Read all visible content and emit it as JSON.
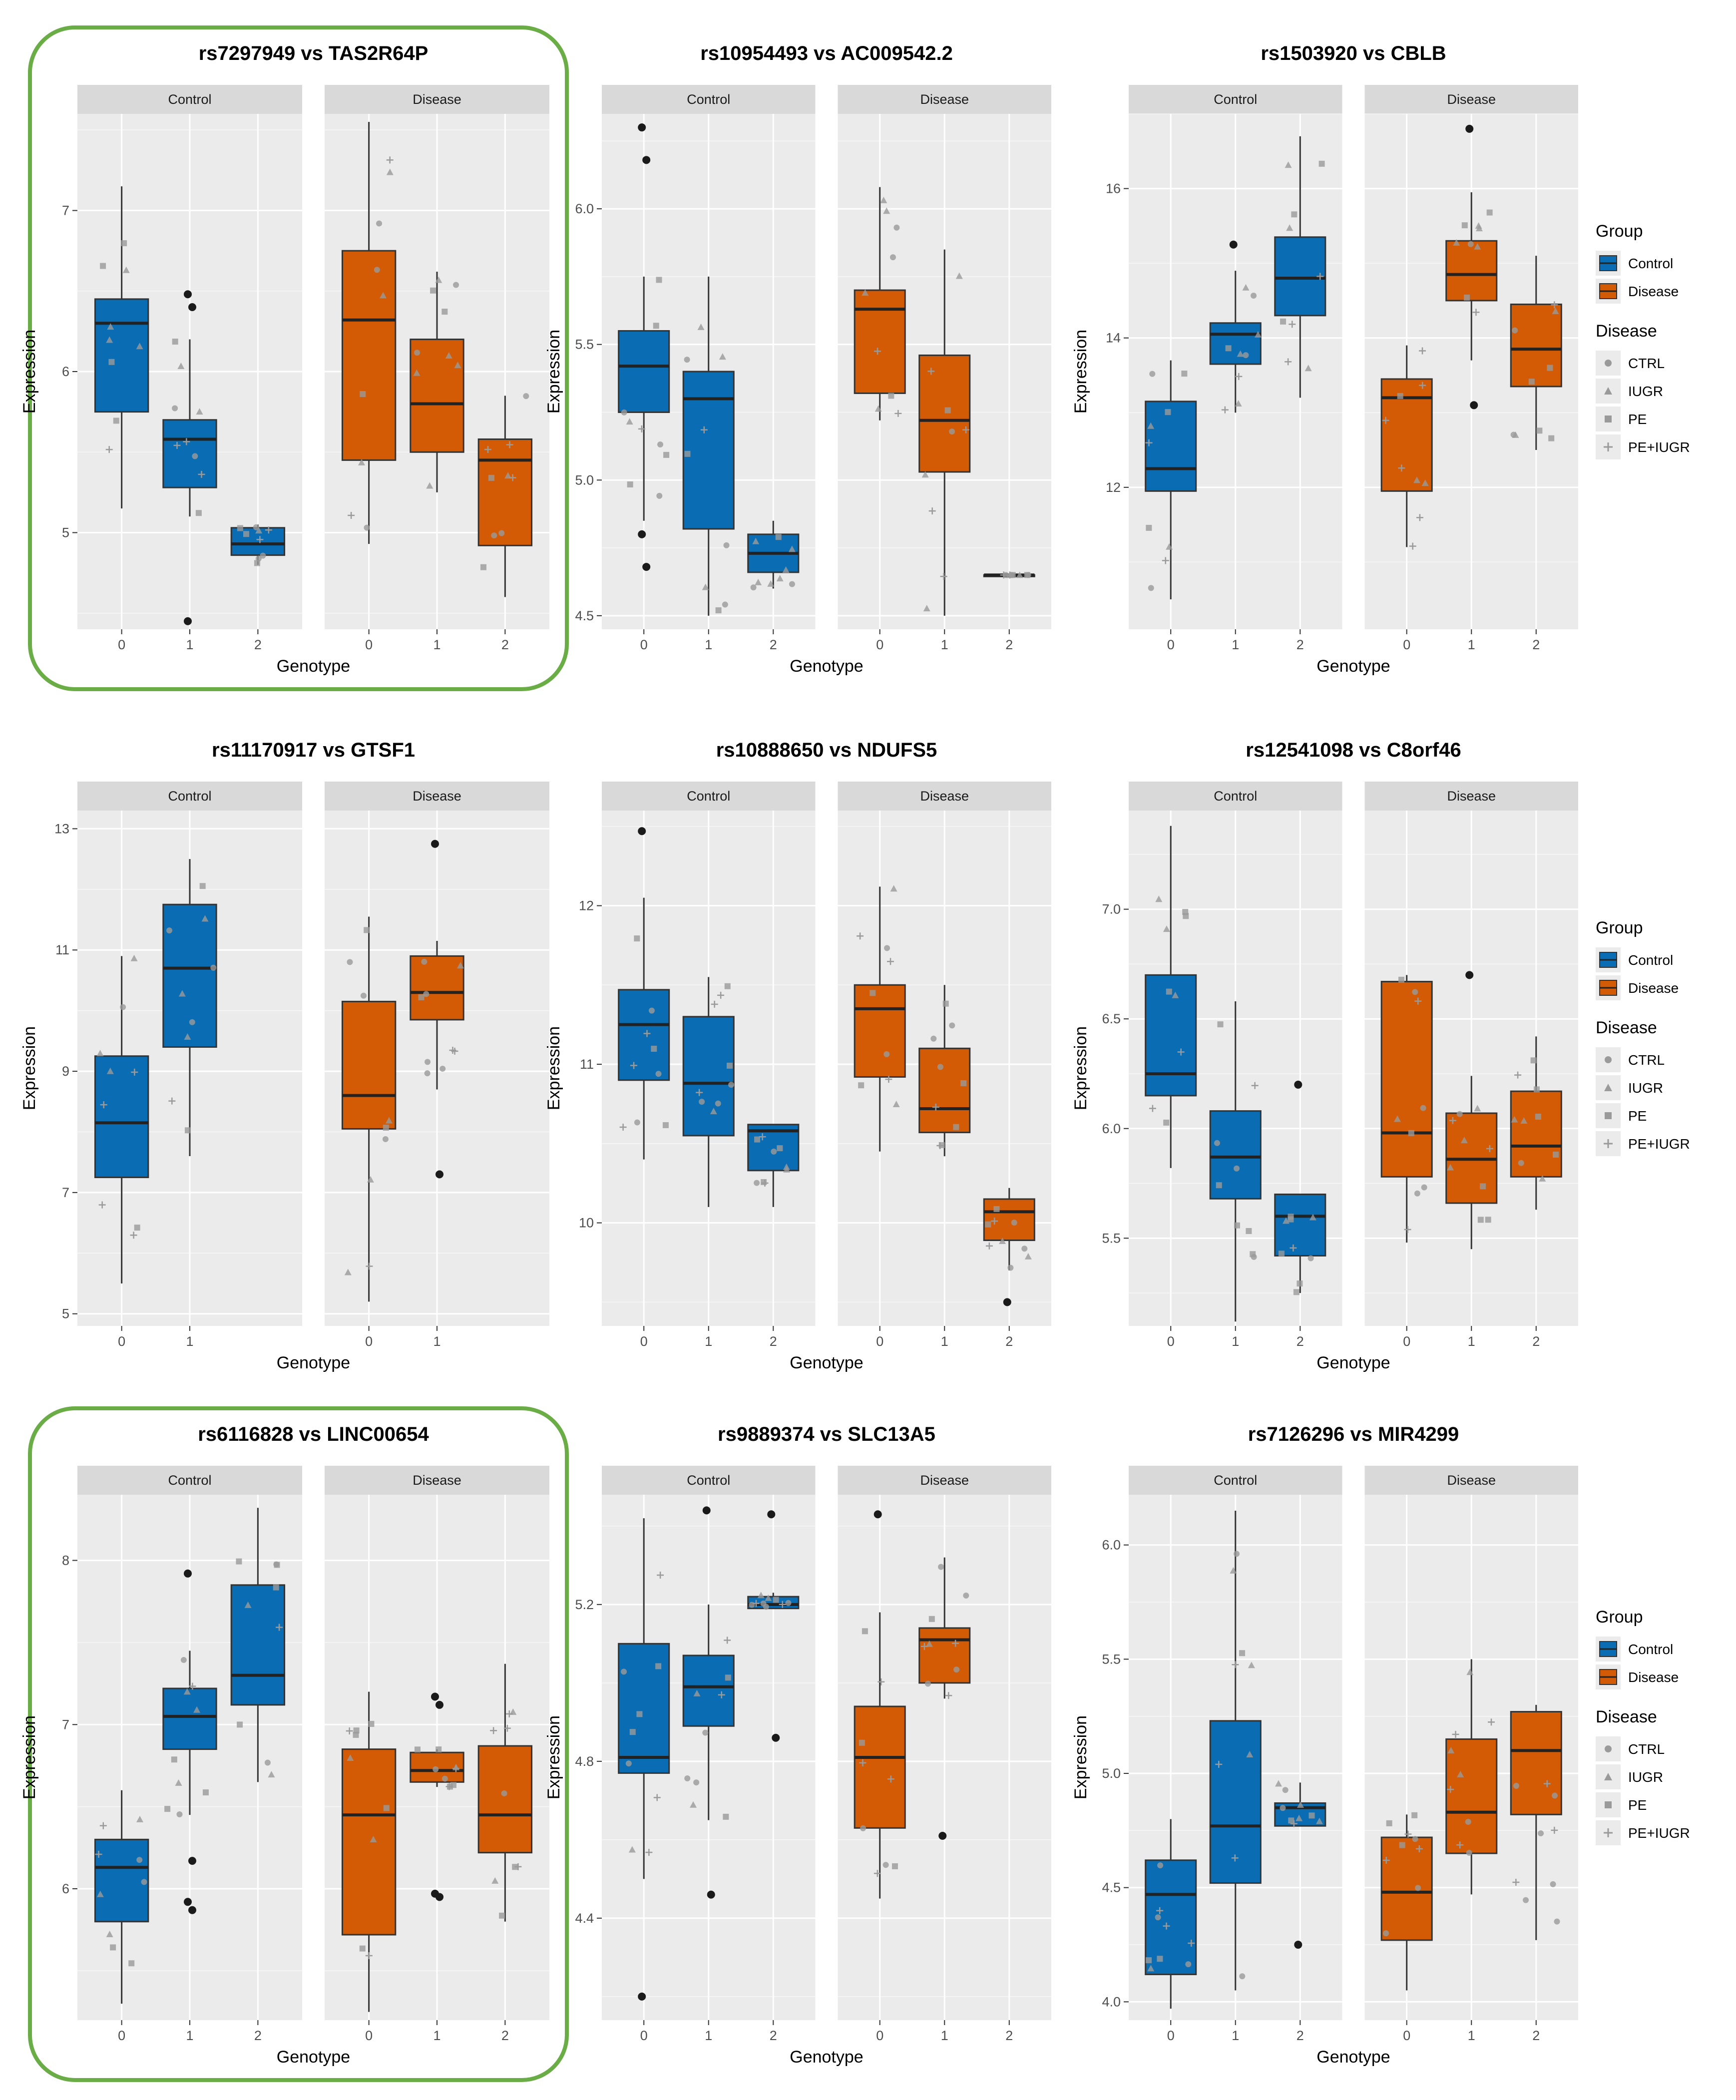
{
  "colors": {
    "control": "#0a6db3",
    "disease": "#d35b06",
    "panel_bg": "#ebebeb",
    "strip_bg": "#d9d9d9",
    "grid": "#ffffff",
    "highlight": "#6aac45",
    "point": "#9a9a9a",
    "outlier": "#1a1a1a"
  },
  "chart_data": [
    {
      "type": "boxplot",
      "title": "rs7297949 vs TAS2R64P",
      "xlabel": "Genotype",
      "ylabel": "Expression",
      "ylim": [
        4.4,
        7.6
      ],
      "yticks": [
        5,
        6,
        7
      ],
      "highlighted": true,
      "legend": false,
      "facets": [
        {
          "label": "Control",
          "group": "Control",
          "genotypes": [
            "0",
            "1",
            "2"
          ],
          "boxes": [
            {
              "min": 5.15,
              "q1": 5.75,
              "median": 6.3,
              "q3": 6.45,
              "max": 7.15,
              "outliers": []
            },
            {
              "min": 5.1,
              "q1": 5.28,
              "median": 5.58,
              "q3": 5.7,
              "max": 6.2,
              "outliers": [
                6.48,
                6.4,
                4.45
              ]
            },
            {
              "min": 4.8,
              "q1": 4.86,
              "median": 4.93,
              "q3": 5.03,
              "max": 5.05,
              "outliers": []
            }
          ]
        },
        {
          "label": "Disease",
          "group": "Disease",
          "genotypes": [
            "0",
            "1",
            "2"
          ],
          "boxes": [
            {
              "min": 4.93,
              "q1": 5.45,
              "median": 6.32,
              "q3": 6.75,
              "max": 7.55,
              "outliers": []
            },
            {
              "min": 5.25,
              "q1": 5.5,
              "median": 5.8,
              "q3": 6.2,
              "max": 6.62,
              "outliers": []
            },
            {
              "min": 4.6,
              "q1": 4.92,
              "median": 5.45,
              "q3": 5.58,
              "max": 5.85,
              "outliers": []
            }
          ]
        }
      ]
    },
    {
      "type": "boxplot",
      "title": "rs10954493 vs AC009542.2",
      "xlabel": "Genotype",
      "ylabel": "Expression",
      "ylim": [
        4.45,
        6.35
      ],
      "yticks": [
        4.5,
        5.0,
        5.5,
        6.0
      ],
      "highlighted": false,
      "legend": false,
      "facets": [
        {
          "label": "Control",
          "group": "Control",
          "genotypes": [
            "0",
            "1",
            "2"
          ],
          "boxes": [
            {
              "min": 4.85,
              "q1": 5.25,
              "median": 5.42,
              "q3": 5.55,
              "max": 5.75,
              "outliers": [
                6.3,
                6.18,
                4.8,
                4.68
              ]
            },
            {
              "min": 4.5,
              "q1": 4.82,
              "median": 5.3,
              "q3": 5.4,
              "max": 5.75,
              "outliers": []
            },
            {
              "min": 4.6,
              "q1": 4.66,
              "median": 4.73,
              "q3": 4.8,
              "max": 4.85,
              "outliers": []
            }
          ]
        },
        {
          "label": "Disease",
          "group": "Disease",
          "genotypes": [
            "0",
            "1",
            "2"
          ],
          "boxes": [
            {
              "min": 5.22,
              "q1": 5.32,
              "median": 5.63,
              "q3": 5.7,
              "max": 6.08,
              "outliers": []
            },
            {
              "min": 4.5,
              "q1": 5.03,
              "median": 5.22,
              "q3": 5.46,
              "max": 5.85,
              "outliers": []
            },
            {
              "min": 4.65,
              "q1": 4.65,
              "median": 4.65,
              "q3": 4.65,
              "max": 4.65,
              "outliers": []
            }
          ]
        }
      ]
    },
    {
      "type": "boxplot",
      "title": "rs1503920 vs CBLB",
      "xlabel": "Genotype",
      "ylabel": "Expression",
      "ylim": [
        10.1,
        17.0
      ],
      "yticks": [
        12,
        14,
        16
      ],
      "highlighted": false,
      "legend": true,
      "facets": [
        {
          "label": "Control",
          "group": "Control",
          "genotypes": [
            "0",
            "1",
            "2"
          ],
          "boxes": [
            {
              "min": 10.5,
              "q1": 11.95,
              "median": 12.25,
              "q3": 13.15,
              "max": 13.7,
              "outliers": []
            },
            {
              "min": 13.0,
              "q1": 13.65,
              "median": 14.05,
              "q3": 14.2,
              "max": 14.9,
              "outliers": [
                15.25
              ]
            },
            {
              "min": 13.2,
              "q1": 14.3,
              "median": 14.8,
              "q3": 15.35,
              "max": 16.7,
              "outliers": []
            }
          ]
        },
        {
          "label": "Disease",
          "group": "Disease",
          "genotypes": [
            "0",
            "1",
            "2"
          ],
          "boxes": [
            {
              "min": 11.2,
              "q1": 11.95,
              "median": 13.2,
              "q3": 13.45,
              "max": 13.9,
              "outliers": []
            },
            {
              "min": 13.7,
              "q1": 14.5,
              "median": 14.85,
              "q3": 15.3,
              "max": 15.95,
              "outliers": [
                16.8,
                13.1
              ]
            },
            {
              "min": 12.5,
              "q1": 13.35,
              "median": 13.85,
              "q3": 14.45,
              "max": 15.1,
              "outliers": []
            }
          ]
        }
      ]
    },
    {
      "type": "boxplot",
      "title": "rs11170917 vs GTSF1",
      "xlabel": "Genotype",
      "ylabel": "Expression",
      "ylim": [
        4.8,
        13.3
      ],
      "yticks": [
        5,
        7,
        9,
        11,
        13
      ],
      "highlighted": false,
      "legend": false,
      "facets": [
        {
          "label": "Control",
          "group": "Control",
          "genotypes": [
            "0",
            "1"
          ],
          "boxes": [
            {
              "min": 5.5,
              "q1": 7.25,
              "median": 8.15,
              "q3": 9.25,
              "max": 10.9,
              "outliers": []
            },
            {
              "min": 7.6,
              "q1": 9.4,
              "median": 10.7,
              "q3": 11.75,
              "max": 12.5,
              "outliers": []
            }
          ]
        },
        {
          "label": "Disease",
          "group": "Disease",
          "genotypes": [
            "0",
            "1"
          ],
          "boxes": [
            {
              "min": 5.2,
              "q1": 8.05,
              "median": 8.6,
              "q3": 10.15,
              "max": 11.55,
              "outliers": []
            },
            {
              "min": 8.7,
              "q1": 9.85,
              "median": 10.3,
              "q3": 10.9,
              "max": 11.15,
              "outliers": [
                12.75,
                7.3
              ]
            }
          ]
        }
      ]
    },
    {
      "type": "boxplot",
      "title": "rs10888650 vs NDUFS5",
      "xlabel": "Genotype",
      "ylabel": "Expression",
      "ylim": [
        9.35,
        12.6
      ],
      "yticks": [
        10,
        11,
        12
      ],
      "highlighted": false,
      "legend": false,
      "facets": [
        {
          "label": "Control",
          "group": "Control",
          "genotypes": [
            "0",
            "1",
            "2"
          ],
          "boxes": [
            {
              "min": 10.4,
              "q1": 10.9,
              "median": 11.25,
              "q3": 11.47,
              "max": 12.05,
              "outliers": [
                12.47
              ]
            },
            {
              "min": 10.1,
              "q1": 10.55,
              "median": 10.88,
              "q3": 11.3,
              "max": 11.55,
              "outliers": []
            },
            {
              "min": 10.1,
              "q1": 10.33,
              "median": 10.58,
              "q3": 10.62,
              "max": 10.62,
              "outliers": []
            }
          ]
        },
        {
          "label": "Disease",
          "group": "Disease",
          "genotypes": [
            "0",
            "1",
            "2"
          ],
          "boxes": [
            {
              "min": 10.45,
              "q1": 10.92,
              "median": 11.35,
              "q3": 11.5,
              "max": 12.12,
              "outliers": []
            },
            {
              "min": 10.42,
              "q1": 10.57,
              "median": 10.72,
              "q3": 11.1,
              "max": 11.5,
              "outliers": []
            },
            {
              "min": 9.7,
              "q1": 9.89,
              "median": 10.07,
              "q3": 10.15,
              "max": 10.22,
              "outliers": [
                9.5
              ]
            }
          ]
        }
      ]
    },
    {
      "type": "boxplot",
      "title": "rs12541098 vs C8orf46",
      "xlabel": "Genotype",
      "ylabel": "Expression",
      "ylim": [
        5.1,
        7.45
      ],
      "yticks": [
        5.5,
        6.0,
        6.5,
        7.0
      ],
      "highlighted": false,
      "legend": true,
      "facets": [
        {
          "label": "Control",
          "group": "Control",
          "genotypes": [
            "0",
            "1",
            "2"
          ],
          "boxes": [
            {
              "min": 5.82,
              "q1": 6.15,
              "median": 6.25,
              "q3": 6.7,
              "max": 7.38,
              "outliers": []
            },
            {
              "min": 5.12,
              "q1": 5.68,
              "median": 5.87,
              "q3": 6.08,
              "max": 6.58,
              "outliers": []
            },
            {
              "min": 5.25,
              "q1": 5.42,
              "median": 5.6,
              "q3": 5.7,
              "max": 5.7,
              "outliers": [
                6.2
              ]
            }
          ]
        },
        {
          "label": "Disease",
          "group": "Disease",
          "genotypes": [
            "0",
            "1",
            "2"
          ],
          "boxes": [
            {
              "min": 5.48,
              "q1": 5.78,
              "median": 5.98,
              "q3": 6.67,
              "max": 6.7,
              "outliers": []
            },
            {
              "min": 5.45,
              "q1": 5.66,
              "median": 5.86,
              "q3": 6.07,
              "max": 6.24,
              "outliers": [
                6.7
              ]
            },
            {
              "min": 5.63,
              "q1": 5.78,
              "median": 5.92,
              "q3": 6.17,
              "max": 6.42,
              "outliers": []
            }
          ]
        }
      ]
    },
    {
      "type": "boxplot",
      "title": "rs6116828 vs LINC00654",
      "xlabel": "Genotype",
      "ylabel": "Expression",
      "ylim": [
        5.2,
        8.4
      ],
      "yticks": [
        6,
        7,
        8
      ],
      "highlighted": true,
      "legend": false,
      "facets": [
        {
          "label": "Control",
          "group": "Control",
          "genotypes": [
            "0",
            "1",
            "2"
          ],
          "boxes": [
            {
              "min": 5.3,
              "q1": 5.8,
              "median": 6.13,
              "q3": 6.3,
              "max": 6.6,
              "outliers": []
            },
            {
              "min": 6.45,
              "q1": 6.85,
              "median": 7.05,
              "q3": 7.22,
              "max": 7.45,
              "outliers": [
                7.92,
                6.17,
                5.92,
                5.87
              ]
            },
            {
              "min": 6.65,
              "q1": 7.12,
              "median": 7.3,
              "q3": 7.85,
              "max": 8.32,
              "outliers": []
            }
          ]
        },
        {
          "label": "Disease",
          "group": "Disease",
          "genotypes": [
            "0",
            "1",
            "2"
          ],
          "boxes": [
            {
              "min": 5.25,
              "q1": 5.72,
              "median": 6.45,
              "q3": 6.85,
              "max": 7.2,
              "outliers": []
            },
            {
              "min": 6.62,
              "q1": 6.65,
              "median": 6.72,
              "q3": 6.83,
              "max": 6.85,
              "outliers": [
                7.17,
                7.12,
                5.97,
                5.95
              ]
            },
            {
              "min": 5.8,
              "q1": 6.22,
              "median": 6.45,
              "q3": 6.87,
              "max": 7.37,
              "outliers": []
            }
          ]
        }
      ]
    },
    {
      "type": "boxplot",
      "title": "rs9889374 vs SLC13A5",
      "xlabel": "Genotype",
      "ylabel": "Expression",
      "ylim": [
        4.14,
        5.48
      ],
      "yticks": [
        4.4,
        4.8,
        5.2
      ],
      "highlighted": false,
      "legend": false,
      "facets": [
        {
          "label": "Control",
          "group": "Control",
          "genotypes": [
            "0",
            "1",
            "2"
          ],
          "boxes": [
            {
              "min": 4.5,
              "q1": 4.77,
              "median": 4.81,
              "q3": 5.1,
              "max": 5.42,
              "outliers": [
                4.2
              ]
            },
            {
              "min": 4.65,
              "q1": 4.89,
              "median": 4.99,
              "q3": 5.07,
              "max": 5.2,
              "outliers": [
                5.44,
                4.46
              ]
            },
            {
              "min": 5.19,
              "q1": 5.19,
              "median": 5.2,
              "q3": 5.22,
              "max": 5.23,
              "outliers": [
                5.43,
                4.86
              ]
            }
          ]
        },
        {
          "label": "Disease",
          "group": "Disease",
          "genotypes": [
            "0",
            "1",
            "2"
          ],
          "boxes": [
            {
              "min": 4.45,
              "q1": 4.63,
              "median": 4.81,
              "q3": 4.94,
              "max": 5.18,
              "outliers": [
                5.43
              ]
            },
            {
              "min": 4.96,
              "q1": 5.0,
              "median": 5.11,
              "q3": 5.14,
              "max": 5.32,
              "outliers": [
                4.61
              ]
            }
          ]
        }
      ]
    },
    {
      "type": "boxplot",
      "title": "rs7126296 vs MIR4299",
      "xlabel": "Genotype",
      "ylabel": "Expression",
      "ylim": [
        3.92,
        6.22
      ],
      "yticks": [
        4.0,
        4.5,
        5.0,
        5.5,
        6.0
      ],
      "highlighted": false,
      "legend": true,
      "facets": [
        {
          "label": "Control",
          "group": "Control",
          "genotypes": [
            "0",
            "1",
            "2"
          ],
          "boxes": [
            {
              "min": 3.97,
              "q1": 4.12,
              "median": 4.47,
              "q3": 4.62,
              "max": 4.8,
              "outliers": []
            },
            {
              "min": 4.05,
              "q1": 4.52,
              "median": 4.77,
              "q3": 5.23,
              "max": 6.15,
              "outliers": []
            },
            {
              "min": 4.77,
              "q1": 4.77,
              "median": 4.85,
              "q3": 4.87,
              "max": 4.96,
              "outliers": [
                4.25
              ]
            }
          ]
        },
        {
          "label": "Disease",
          "group": "Disease",
          "genotypes": [
            "0",
            "1",
            "2"
          ],
          "boxes": [
            {
              "min": 4.05,
              "q1": 4.27,
              "median": 4.48,
              "q3": 4.72,
              "max": 4.82,
              "outliers": []
            },
            {
              "min": 4.47,
              "q1": 4.65,
              "median": 4.83,
              "q3": 5.15,
              "max": 5.5,
              "outliers": []
            },
            {
              "min": 4.27,
              "q1": 4.82,
              "median": 5.1,
              "q3": 5.27,
              "max": 5.3,
              "outliers": []
            }
          ]
        }
      ]
    }
  ],
  "legend": {
    "group_title": "Group",
    "group_items": [
      {
        "label": "Control",
        "color": "#0a6db3"
      },
      {
        "label": "Disease",
        "color": "#d35b06"
      }
    ],
    "disease_title": "Disease",
    "disease_items": [
      {
        "label": "CTRL",
        "shape": "circle"
      },
      {
        "label": "IUGR",
        "shape": "triangle"
      },
      {
        "label": "PE",
        "shape": "square"
      },
      {
        "label": "PE+IUGR",
        "shape": "plus"
      }
    ]
  }
}
